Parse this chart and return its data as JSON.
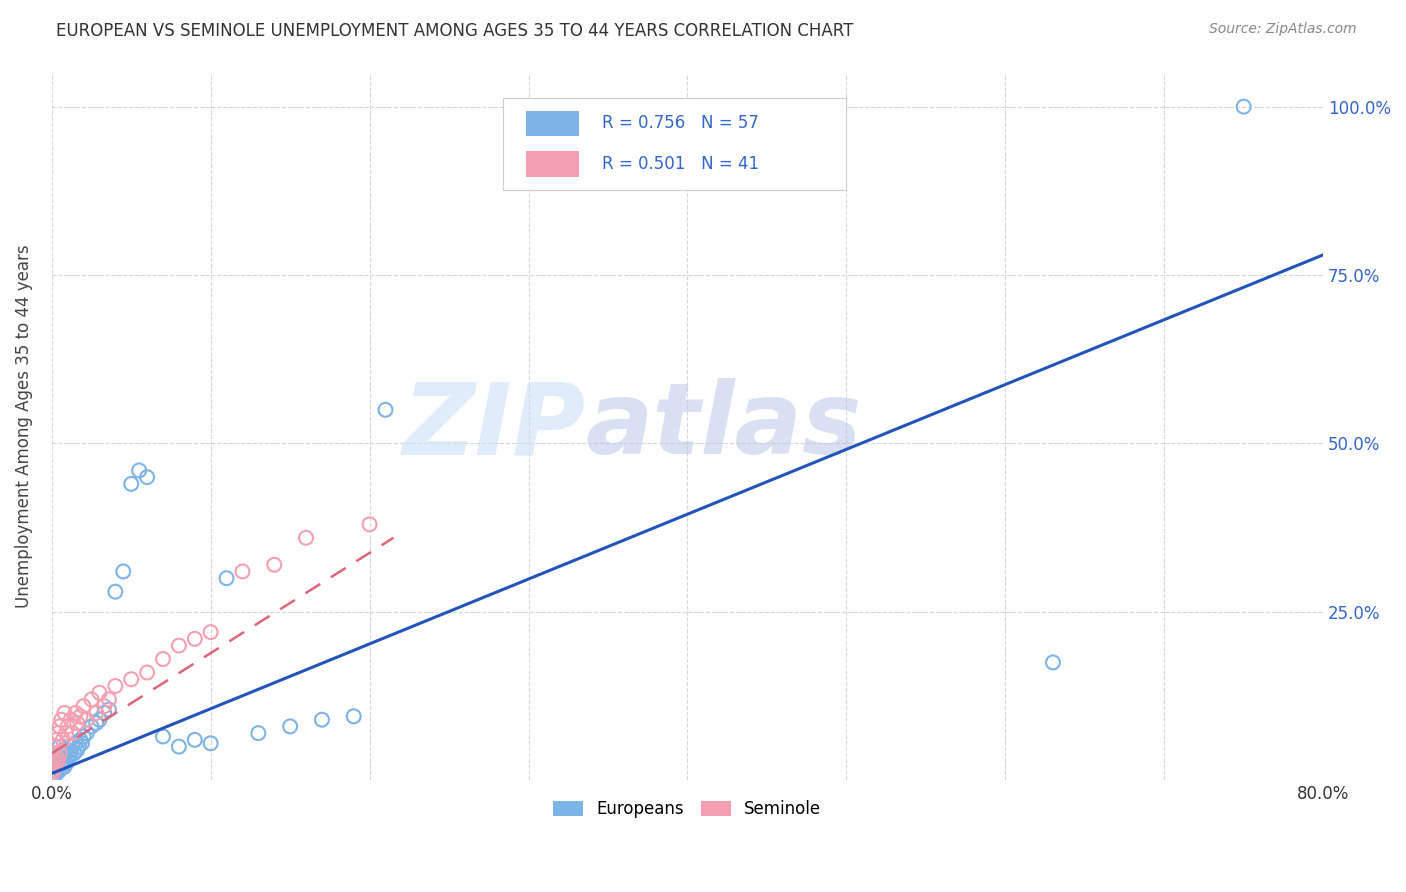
{
  "title": "EUROPEAN VS SEMINOLE UNEMPLOYMENT AMONG AGES 35 TO 44 YEARS CORRELATION CHART",
  "source": "Source: ZipAtlas.com",
  "xlim": [
    0.0,
    0.8
  ],
  "ylim": [
    0.0,
    1.05
  ],
  "europeans_x": [
    0.0,
    0.001,
    0.001,
    0.002,
    0.002,
    0.002,
    0.003,
    0.003,
    0.003,
    0.004,
    0.004,
    0.005,
    0.005,
    0.005,
    0.006,
    0.006,
    0.007,
    0.007,
    0.008,
    0.008,
    0.009,
    0.009,
    0.01,
    0.01,
    0.011,
    0.012,
    0.013,
    0.014,
    0.015,
    0.016,
    0.017,
    0.018,
    0.019,
    0.02,
    0.022,
    0.025,
    0.028,
    0.03,
    0.033,
    0.036,
    0.04,
    0.045,
    0.05,
    0.055,
    0.06,
    0.07,
    0.08,
    0.09,
    0.1,
    0.11,
    0.13,
    0.15,
    0.17,
    0.19,
    0.21,
    0.63,
    0.75
  ],
  "europeans_y": [
    0.01,
    0.005,
    0.02,
    0.01,
    0.015,
    0.03,
    0.01,
    0.025,
    0.04,
    0.02,
    0.03,
    0.015,
    0.035,
    0.05,
    0.02,
    0.04,
    0.025,
    0.045,
    0.02,
    0.03,
    0.025,
    0.04,
    0.03,
    0.045,
    0.035,
    0.04,
    0.05,
    0.04,
    0.055,
    0.045,
    0.05,
    0.06,
    0.055,
    0.065,
    0.07,
    0.08,
    0.085,
    0.09,
    0.1,
    0.105,
    0.28,
    0.31,
    0.44,
    0.46,
    0.45,
    0.065,
    0.05,
    0.06,
    0.055,
    0.3,
    0.07,
    0.08,
    0.09,
    0.095,
    0.55,
    0.175,
    1.0
  ],
  "seminole_x": [
    0.0,
    0.0,
    0.001,
    0.001,
    0.002,
    0.002,
    0.002,
    0.003,
    0.003,
    0.004,
    0.004,
    0.005,
    0.005,
    0.006,
    0.007,
    0.008,
    0.009,
    0.01,
    0.012,
    0.013,
    0.015,
    0.016,
    0.018,
    0.02,
    0.022,
    0.025,
    0.028,
    0.03,
    0.033,
    0.036,
    0.04,
    0.05,
    0.06,
    0.07,
    0.08,
    0.09,
    0.1,
    0.12,
    0.14,
    0.16,
    0.2
  ],
  "seminole_y": [
    0.01,
    0.02,
    0.015,
    0.03,
    0.02,
    0.04,
    0.05,
    0.025,
    0.06,
    0.03,
    0.07,
    0.08,
    0.04,
    0.09,
    0.06,
    0.1,
    0.07,
    0.08,
    0.09,
    0.07,
    0.1,
    0.085,
    0.095,
    0.11,
    0.09,
    0.12,
    0.1,
    0.13,
    0.11,
    0.12,
    0.14,
    0.15,
    0.16,
    0.18,
    0.2,
    0.21,
    0.22,
    0.31,
    0.32,
    0.36,
    0.38
  ],
  "eu_line_x0": 0.0,
  "eu_line_x1": 0.8,
  "eu_line_y0": 0.01,
  "eu_line_y1": 0.78,
  "sem_line_x0": 0.0,
  "sem_line_x1": 0.215,
  "sem_line_y0": 0.04,
  "sem_line_y1": 0.36,
  "european_color": "#7eb3e8",
  "seminole_color": "#f4a0b0",
  "european_line_color": "#2255bb",
  "seminole_line_color": "#dd6677",
  "R_european": 0.756,
  "N_european": 57,
  "R_seminole": 0.501,
  "N_seminole": 41,
  "background_color": "#ffffff",
  "grid_color": "#cccccc"
}
